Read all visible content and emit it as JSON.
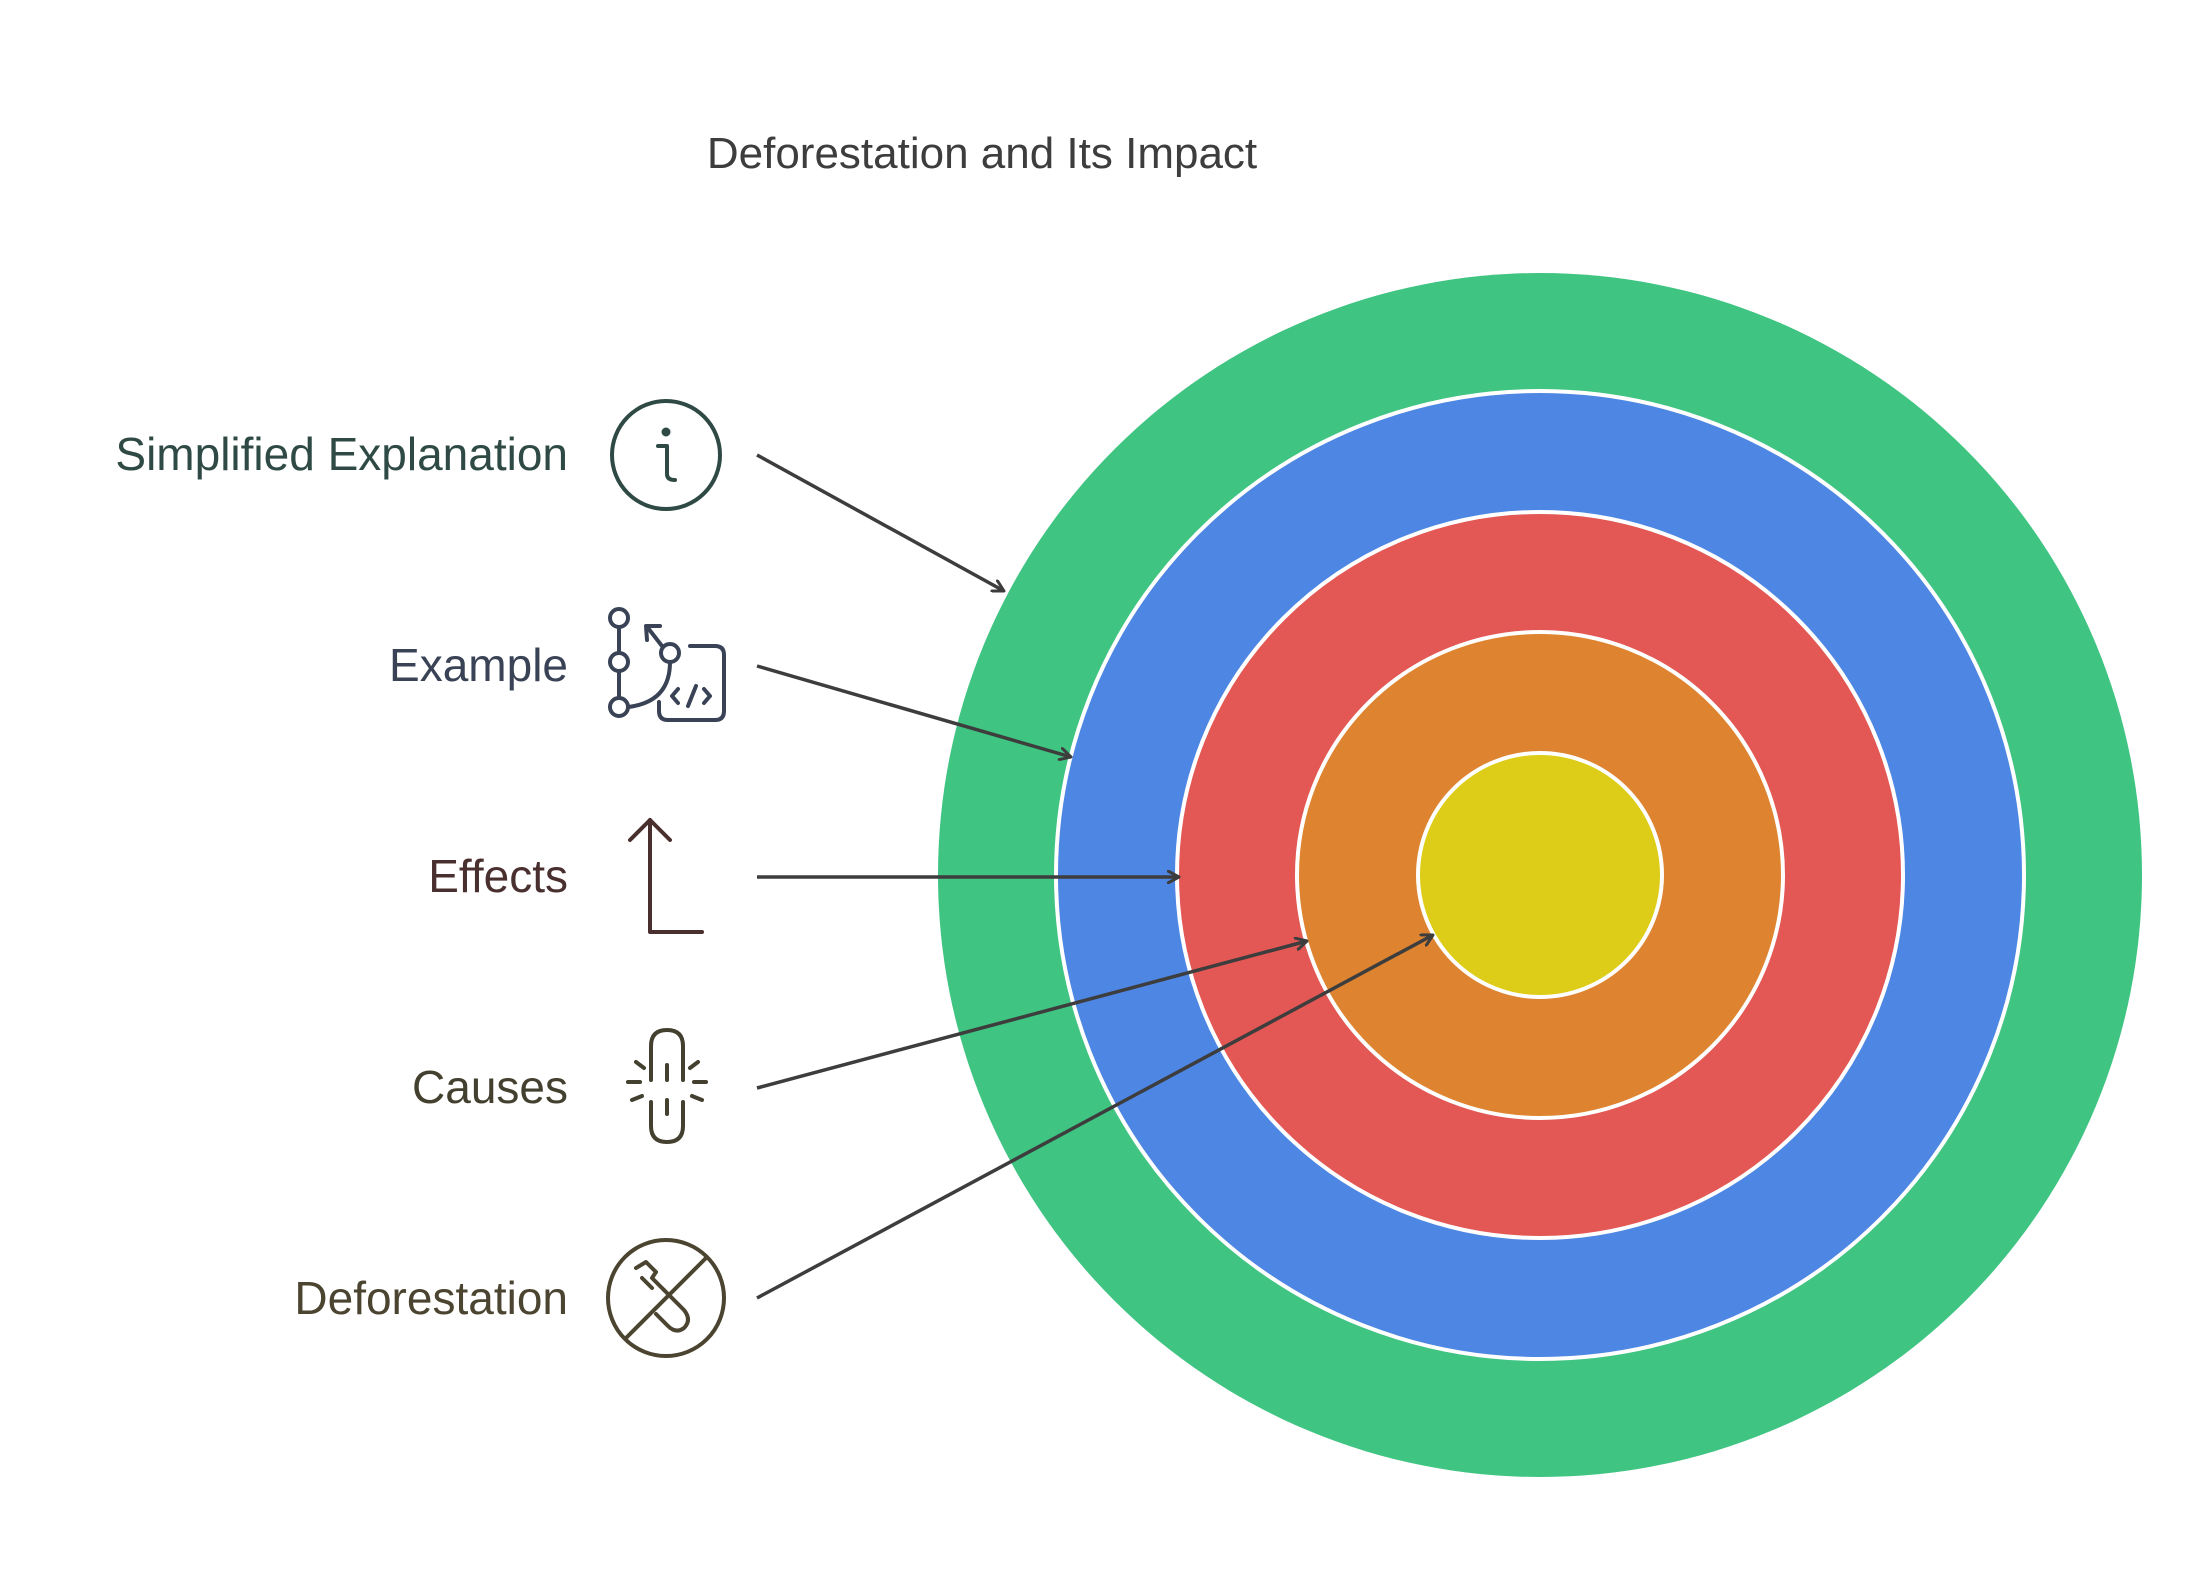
{
  "title": "Deforestation and Its Impact",
  "rings": [
    {
      "name": "outer-ring",
      "color": "#3FC482"
    },
    {
      "name": "blue-ring",
      "color": "#4E86E4"
    },
    {
      "name": "red-ring",
      "color": "#E35754"
    },
    {
      "name": "orange-ring",
      "color": "#DE8431"
    },
    {
      "name": "center-circle",
      "color": "#DDCD18"
    }
  ],
  "labels": [
    {
      "text": "Simplified Explanation",
      "color": "#2F4A45",
      "icon": "info-icon"
    },
    {
      "text": "Example",
      "color": "#3A4256",
      "icon": "code-branch-icon"
    },
    {
      "text": "Effects",
      "color": "#4A2F2F",
      "icon": "arrow-up-icon"
    },
    {
      "text": "Causes",
      "color": "#43402F",
      "icon": "broken-link-icon"
    },
    {
      "text": "Deforestation",
      "color": "#4A4430",
      "icon": "no-chainsaw-icon"
    }
  ]
}
